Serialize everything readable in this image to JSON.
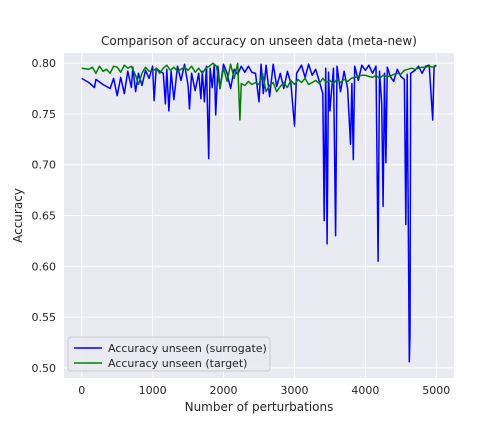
{
  "chart_data": {
    "type": "line",
    "title": "Comparison of accuracy on unseen data (meta-new)",
    "xlabel": "Number of perturbations",
    "ylabel": "Accuracy",
    "xlim": [
      -250,
      5250
    ],
    "ylim": [
      0.49,
      0.81
    ],
    "xticks": [
      0,
      1000,
      2000,
      3000,
      4000,
      5000
    ],
    "yticks": [
      0.5,
      0.55,
      0.6,
      0.65,
      0.7,
      0.75,
      0.8
    ],
    "ytick_labels": [
      "0.50",
      "0.55",
      "0.60",
      "0.65",
      "0.70",
      "0.75",
      "0.80"
    ],
    "grid": true,
    "legend_position": "lower-left",
    "colors": {
      "background": "#eaeaf2",
      "grid": "#ffffff",
      "surrogate": "#0000ff",
      "target": "#008000"
    },
    "series": [
      {
        "name": "Accuracy unseen (surrogate)",
        "color": "#0000ff",
        "points": [
          [
            0,
            0.785
          ],
          [
            100,
            0.781
          ],
          [
            180,
            0.776
          ],
          [
            200,
            0.784
          ],
          [
            300,
            0.779
          ],
          [
            400,
            0.775
          ],
          [
            450,
            0.785
          ],
          [
            500,
            0.768
          ],
          [
            550,
            0.786
          ],
          [
            600,
            0.77
          ],
          [
            650,
            0.792
          ],
          [
            700,
            0.776
          ],
          [
            720,
            0.796
          ],
          [
            760,
            0.772
          ],
          [
            800,
            0.79
          ],
          [
            850,
            0.778
          ],
          [
            900,
            0.793
          ],
          [
            950,
            0.785
          ],
          [
            1000,
            0.797
          ],
          [
            1020,
            0.763
          ],
          [
            1050,
            0.795
          ],
          [
            1100,
            0.792
          ],
          [
            1150,
            0.79
          ],
          [
            1180,
            0.76
          ],
          [
            1200,
            0.794
          ],
          [
            1230,
            0.753
          ],
          [
            1260,
            0.792
          ],
          [
            1300,
            0.764
          ],
          [
            1350,
            0.797
          ],
          [
            1400,
            0.783
          ],
          [
            1450,
            0.799
          ],
          [
            1500,
            0.778
          ],
          [
            1520,
            0.755
          ],
          [
            1550,
            0.79
          ],
          [
            1600,
            0.773
          ],
          [
            1650,
            0.79
          ],
          [
            1680,
            0.765
          ],
          [
            1700,
            0.792
          ],
          [
            1730,
            0.762
          ],
          [
            1760,
            0.797
          ],
          [
            1790,
            0.706
          ],
          [
            1810,
            0.795
          ],
          [
            1840,
            0.776
          ],
          [
            1870,
            0.799
          ],
          [
            1890,
            0.749
          ],
          [
            1920,
            0.797
          ],
          [
            1950,
            0.775
          ],
          [
            2000,
            0.799
          ],
          [
            2050,
            0.79
          ],
          [
            2100,
            0.775
          ],
          [
            2150,
            0.794
          ],
          [
            2200,
            0.789
          ],
          [
            2250,
            0.797
          ],
          [
            2300,
            0.791
          ],
          [
            2350,
            0.797
          ],
          [
            2400,
            0.791
          ],
          [
            2450,
            0.79
          ],
          [
            2500,
            0.762
          ],
          [
            2530,
            0.799
          ],
          [
            2560,
            0.77
          ],
          [
            2600,
            0.798
          ],
          [
            2650,
            0.767
          ],
          [
            2700,
            0.799
          ],
          [
            2750,
            0.777
          ],
          [
            2800,
            0.79
          ],
          [
            2850,
            0.775
          ],
          [
            2900,
            0.792
          ],
          [
            2950,
            0.78
          ],
          [
            3000,
            0.738
          ],
          [
            3030,
            0.79
          ],
          [
            3100,
            0.798
          ],
          [
            3150,
            0.786
          ],
          [
            3200,
            0.799
          ],
          [
            3250,
            0.788
          ],
          [
            3300,
            0.794
          ],
          [
            3350,
            0.782
          ],
          [
            3400,
            0.77
          ],
          [
            3420,
            0.645
          ],
          [
            3440,
            0.795
          ],
          [
            3460,
            0.622
          ],
          [
            3480,
            0.791
          ],
          [
            3500,
            0.753
          ],
          [
            3550,
            0.795
          ],
          [
            3580,
            0.63
          ],
          [
            3600,
            0.797
          ],
          [
            3650,
            0.772
          ],
          [
            3700,
            0.792
          ],
          [
            3750,
            0.775
          ],
          [
            3790,
            0.72
          ],
          [
            3810,
            0.78
          ],
          [
            3830,
            0.705
          ],
          [
            3850,
            0.797
          ],
          [
            3900,
            0.783
          ],
          [
            3950,
            0.798
          ],
          [
            4000,
            0.793
          ],
          [
            4050,
            0.798
          ],
          [
            4100,
            0.79
          ],
          [
            4150,
            0.797
          ],
          [
            4180,
            0.605
          ],
          [
            4200,
            0.792
          ],
          [
            4230,
            0.76
          ],
          [
            4250,
            0.659
          ],
          [
            4270,
            0.79
          ],
          [
            4290,
            0.702
          ],
          [
            4310,
            0.796
          ],
          [
            4350,
            0.787
          ],
          [
            4400,
            0.782
          ],
          [
            4450,
            0.794
          ],
          [
            4500,
            0.787
          ],
          [
            4550,
            0.784
          ],
          [
            4570,
            0.641
          ],
          [
            4590,
            0.789
          ],
          [
            4620,
            0.506
          ],
          [
            4630,
            0.531
          ],
          [
            4640,
            0.79
          ],
          [
            4700,
            0.793
          ],
          [
            4750,
            0.797
          ],
          [
            4800,
            0.79
          ],
          [
            4850,
            0.797
          ],
          [
            4900,
            0.798
          ],
          [
            4950,
            0.744
          ],
          [
            4970,
            0.797
          ],
          [
            5000,
            0.798
          ]
        ]
      },
      {
        "name": "Accuracy unseen (target)",
        "color": "#008000",
        "points": [
          [
            0,
            0.795
          ],
          [
            100,
            0.794
          ],
          [
            150,
            0.796
          ],
          [
            200,
            0.79
          ],
          [
            250,
            0.797
          ],
          [
            300,
            0.792
          ],
          [
            350,
            0.794
          ],
          [
            400,
            0.79
          ],
          [
            450,
            0.797
          ],
          [
            500,
            0.796
          ],
          [
            550,
            0.791
          ],
          [
            600,
            0.798
          ],
          [
            650,
            0.795
          ],
          [
            700,
            0.797
          ],
          [
            760,
            0.788
          ],
          [
            800,
            0.779
          ],
          [
            850,
            0.79
          ],
          [
            900,
            0.796
          ],
          [
            950,
            0.792
          ],
          [
            1000,
            0.792
          ],
          [
            1050,
            0.795
          ],
          [
            1100,
            0.79
          ],
          [
            1150,
            0.795
          ],
          [
            1200,
            0.798
          ],
          [
            1250,
            0.793
          ],
          [
            1300,
            0.796
          ],
          [
            1350,
            0.792
          ],
          [
            1400,
            0.794
          ],
          [
            1450,
            0.796
          ],
          [
            1500,
            0.793
          ],
          [
            1550,
            0.797
          ],
          [
            1600,
            0.791
          ],
          [
            1650,
            0.795
          ],
          [
            1700,
            0.79
          ],
          [
            1750,
            0.795
          ],
          [
            1800,
            0.797
          ],
          [
            1850,
            0.8
          ],
          [
            1900,
            0.797
          ],
          [
            1950,
            0.775
          ],
          [
            2000,
            0.795
          ],
          [
            2050,
            0.782
          ],
          [
            2100,
            0.799
          ],
          [
            2150,
            0.785
          ],
          [
            2200,
            0.8
          ],
          [
            2230,
            0.744
          ],
          [
            2250,
            0.78
          ],
          [
            2300,
            0.778
          ],
          [
            2350,
            0.782
          ],
          [
            2400,
            0.779
          ],
          [
            2450,
            0.781
          ],
          [
            2500,
            0.779
          ],
          [
            2550,
            0.79
          ],
          [
            2600,
            0.772
          ],
          [
            2650,
            0.778
          ],
          [
            2700,
            0.781
          ],
          [
            2750,
            0.772
          ],
          [
            2800,
            0.777
          ],
          [
            2850,
            0.781
          ],
          [
            2900,
            0.776
          ],
          [
            2950,
            0.783
          ],
          [
            3000,
            0.779
          ],
          [
            3050,
            0.784
          ],
          [
            3100,
            0.781
          ],
          [
            3150,
            0.785
          ],
          [
            3200,
            0.779
          ],
          [
            3250,
            0.781
          ],
          [
            3300,
            0.783
          ],
          [
            3350,
            0.78
          ],
          [
            3400,
            0.785
          ],
          [
            3450,
            0.781
          ],
          [
            3500,
            0.783
          ],
          [
            3550,
            0.78
          ],
          [
            3600,
            0.784
          ],
          [
            3650,
            0.781
          ],
          [
            3700,
            0.784
          ],
          [
            3750,
            0.782
          ],
          [
            3800,
            0.785
          ],
          [
            3850,
            0.786
          ],
          [
            3900,
            0.787
          ],
          [
            3950,
            0.788
          ],
          [
            4000,
            0.788
          ],
          [
            4050,
            0.787
          ],
          [
            4100,
            0.786
          ],
          [
            4150,
            0.788
          ],
          [
            4200,
            0.785
          ],
          [
            4250,
            0.788
          ],
          [
            4300,
            0.787
          ],
          [
            4350,
            0.787
          ],
          [
            4400,
            0.789
          ],
          [
            4450,
            0.79
          ],
          [
            4500,
            0.789
          ],
          [
            4550,
            0.793
          ],
          [
            4600,
            0.794
          ],
          [
            4650,
            0.795
          ],
          [
            4700,
            0.794
          ],
          [
            4750,
            0.795
          ],
          [
            4800,
            0.796
          ],
          [
            4850,
            0.796
          ],
          [
            4900,
            0.797
          ],
          [
            4950,
            0.796
          ],
          [
            5000,
            0.797
          ]
        ]
      }
    ]
  }
}
